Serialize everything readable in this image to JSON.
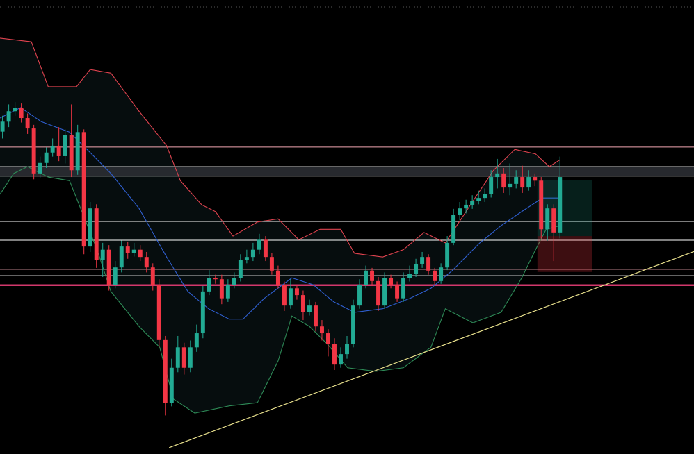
{
  "chart_data": {
    "type": "candlestick",
    "xlim": [
      -0.4,
      110.4
    ],
    "ylim": [
      0,
      100
    ],
    "up_color": "#22ab94",
    "down_color": "#f23645",
    "open": [
      71.0,
      73.2,
      75.5,
      76.3,
      74.0,
      71.7,
      61.8,
      64.1,
      66.4,
      67.9,
      65.6,
      70.2,
      62.5,
      70.9,
      45.7,
      54.1,
      42.7,
      45.0,
      37.3,
      41.1,
      45.7,
      44.2,
      45.0,
      43.4,
      41.1,
      37.3,
      25.1,
      11.3,
      19.0,
      23.5,
      19.0,
      23.5,
      26.6,
      35.8,
      38.8,
      38.5,
      34.3,
      37.3,
      38.8,
      42.7,
      43.4,
      45.0,
      47.2,
      43.4,
      40.4,
      37.3,
      32.7,
      36.5,
      35.0,
      31.2,
      32.7,
      28.1,
      26.6,
      24.3,
      19.7,
      22.0,
      24.3,
      32.7,
      37.3,
      40.4,
      38.1,
      32.7,
      38.8,
      37.3,
      34.3,
      38.8,
      39.6,
      41.9,
      43.4,
      40.4,
      38.1,
      41.1,
      46.5,
      52.6,
      54.1,
      54.9,
      55.7,
      56.4,
      57.2,
      61.0,
      61.8,
      58.7,
      59.5,
      61.0,
      58.7,
      61.0,
      60.2,
      49.5,
      54.1,
      48.8
    ],
    "high": [
      74.5,
      77.0,
      77.5,
      77.2,
      75.0,
      72.5,
      65.5,
      67.5,
      69.5,
      72.0,
      71.5,
      77.0,
      72.5,
      71.5,
      55.5,
      55.0,
      46.5,
      46.0,
      42.5,
      47.0,
      46.8,
      46.5,
      46.0,
      44.5,
      42.0,
      38.5,
      26.0,
      21.0,
      26.0,
      24.5,
      25.0,
      28.5,
      37.0,
      40.5,
      39.5,
      39.5,
      38.5,
      40.0,
      44.0,
      45.0,
      46.5,
      48.5,
      48.0,
      44.2,
      41.5,
      38.0,
      38.5,
      37.2,
      36.0,
      34.0,
      33.5,
      29.5,
      27.5,
      25.5,
      23.5,
      26.0,
      34.0,
      38.5,
      41.5,
      41.0,
      39.0,
      40.0,
      39.5,
      38.0,
      40.0,
      41.5,
      43.0,
      44.5,
      44.0,
      41.0,
      42.0,
      48.0,
      54.0,
      55.5,
      56.0,
      57.0,
      58.0,
      58.5,
      62.5,
      65.0,
      63.0,
      64.0,
      62.5,
      63.5,
      62.5,
      61.8,
      61.0,
      55.0,
      55.0,
      65.5
    ],
    "low": [
      69.5,
      72.0,
      74.5,
      73.0,
      70.5,
      60.5,
      60.8,
      63.0,
      65.5,
      64.5,
      64.0,
      61.0,
      61.5,
      44.0,
      44.5,
      41.0,
      39.0,
      36.0,
      36.5,
      40.0,
      43.0,
      43.5,
      42.5,
      40.0,
      36.0,
      23.5,
      8.5,
      10.5,
      18.0,
      17.5,
      18.0,
      22.5,
      25.5,
      35.0,
      37.5,
      33.0,
      33.5,
      36.5,
      38.0,
      42.0,
      42.5,
      44.0,
      42.5,
      39.5,
      36.5,
      31.5,
      32.0,
      34.0,
      29.5,
      30.5,
      27.0,
      25.0,
      21.5,
      18.5,
      19.0,
      21.0,
      23.5,
      32.0,
      36.5,
      37.0,
      31.5,
      32.0,
      36.5,
      33.5,
      33.5,
      38.0,
      39.0,
      41.0,
      39.5,
      37.0,
      37.5,
      40.5,
      46.0,
      51.5,
      53.0,
      54.0,
      55.0,
      55.5,
      56.5,
      58.5,
      57.5,
      57.0,
      58.5,
      57.5,
      58.0,
      59.0,
      47.5,
      47.0,
      42.5,
      47.5
    ],
    "close": [
      73.2,
      75.5,
      76.3,
      74.0,
      71.7,
      61.8,
      64.1,
      66.4,
      67.9,
      65.6,
      70.2,
      62.5,
      70.9,
      45.7,
      54.1,
      42.7,
      45.0,
      37.3,
      41.1,
      45.7,
      44.2,
      45.0,
      43.4,
      41.1,
      37.3,
      25.1,
      11.3,
      19.0,
      23.5,
      19.0,
      23.5,
      26.6,
      35.8,
      38.8,
      38.5,
      34.3,
      37.3,
      38.8,
      42.7,
      43.4,
      45.0,
      47.2,
      43.4,
      40.4,
      37.3,
      32.7,
      36.5,
      35.0,
      31.2,
      32.7,
      28.1,
      26.6,
      24.3,
      19.7,
      22.0,
      24.3,
      32.7,
      37.3,
      40.4,
      38.1,
      32.7,
      38.8,
      37.3,
      34.3,
      38.8,
      39.6,
      41.9,
      43.4,
      40.4,
      38.1,
      41.1,
      46.5,
      52.6,
      54.1,
      54.9,
      55.7,
      56.4,
      57.2,
      61.0,
      61.8,
      58.7,
      59.5,
      61.0,
      58.7,
      61.0,
      60.2,
      49.5,
      54.1,
      48.8,
      61.0
    ],
    "bands": [
      {
        "color": "#e0434f",
        "x": [
          -0.4,
          4.6,
          7.3,
          11.8,
          14.0,
          17.3,
          21.8,
          26.2,
          28.4,
          31.8,
          34.0,
          36.8,
          40.7,
          44.0,
          47.3,
          50.7,
          54.0,
          56.2,
          60.7,
          64.0,
          67.3,
          70.7,
          75.1,
          78.4,
          81.8,
          85.1,
          87.3,
          89.0
        ],
        "values": [
          91.6,
          90.8,
          80.9,
          80.9,
          84.7,
          83.9,
          75.5,
          67.9,
          60.2,
          54.9,
          53.4,
          48.0,
          51.1,
          51.8,
          47.2,
          49.5,
          49.5,
          44.2,
          43.4,
          45.0,
          48.8,
          46.5,
          55.7,
          62.5,
          67.1,
          66.1,
          63.3,
          64.8
        ]
      },
      {
        "color": "#2f5fd0",
        "x": [
          -0.4,
          2.9,
          6.2,
          10.7,
          14.0,
          17.3,
          21.8,
          26.2,
          29.6,
          32.9,
          36.2,
          38.4,
          41.8,
          46.2,
          49.6,
          52.9,
          56.2,
          60.7,
          65.1,
          68.4,
          71.8,
          76.2,
          79.6,
          82.9,
          86.2,
          89.0
        ],
        "values": [
          74.0,
          76.3,
          73.2,
          70.9,
          66.4,
          61.8,
          54.1,
          43.4,
          35.8,
          32.0,
          29.7,
          29.7,
          34.3,
          38.8,
          37.3,
          33.5,
          31.2,
          32.0,
          34.3,
          36.5,
          40.4,
          46.5,
          50.3,
          53.4,
          56.4,
          56.4
        ]
      },
      {
        "color": "#2e8b57",
        "x": [
          -0.4,
          1.8,
          4.0,
          7.3,
          10.7,
          15.1,
          17.3,
          21.8,
          25.1,
          27.3,
          30.7,
          36.2,
          40.7,
          44.0,
          46.2,
          49.0,
          51.8,
          55.1,
          59.6,
          64.0,
          68.4,
          70.7,
          75.1,
          79.6,
          82.9,
          85.1,
          86.8,
          89.0
        ],
        "values": [
          57.2,
          61.8,
          63.3,
          61.0,
          60.2,
          45.0,
          35.8,
          28.1,
          23.5,
          12.1,
          9.0,
          10.6,
          11.3,
          20.5,
          30.4,
          28.1,
          24.3,
          19.0,
          18.2,
          19.0,
          23.5,
          32.0,
          28.9,
          31.2,
          38.8,
          45.0,
          49.5,
          50.3
        ]
      }
    ],
    "zones": [
      {
        "from": 61.2,
        "to": 63.3,
        "color": "#2b2e33"
      }
    ],
    "levels": [
      {
        "value": 67.6,
        "color": "#f2a7b2",
        "width": 1
      },
      {
        "value": 63.3,
        "color": "#d0d0d0",
        "width": 1
      },
      {
        "value": 61.2,
        "color": "#d0d0d0",
        "width": 1
      },
      {
        "value": 51.2,
        "color": "#c8c8c8",
        "width": 1
      },
      {
        "value": 47.1,
        "color": "#ffffff",
        "width": 1
      },
      {
        "value": 40.7,
        "color": "#f2a7b2",
        "width": 1
      },
      {
        "value": 39.3,
        "color": "#c8c8c8",
        "width": 1
      },
      {
        "value": 37.2,
        "color": "#d2386c",
        "width": 2.5
      }
    ],
    "trendline": {
      "color": "#e8e08c",
      "x": [
        26.6,
        110.4
      ],
      "values": [
        1.4,
        44.6
      ]
    },
    "position": {
      "x": [
        85.4,
        94.1
      ],
      "target": 60.4,
      "entry": 48.0,
      "stop": 40.1
    }
  }
}
